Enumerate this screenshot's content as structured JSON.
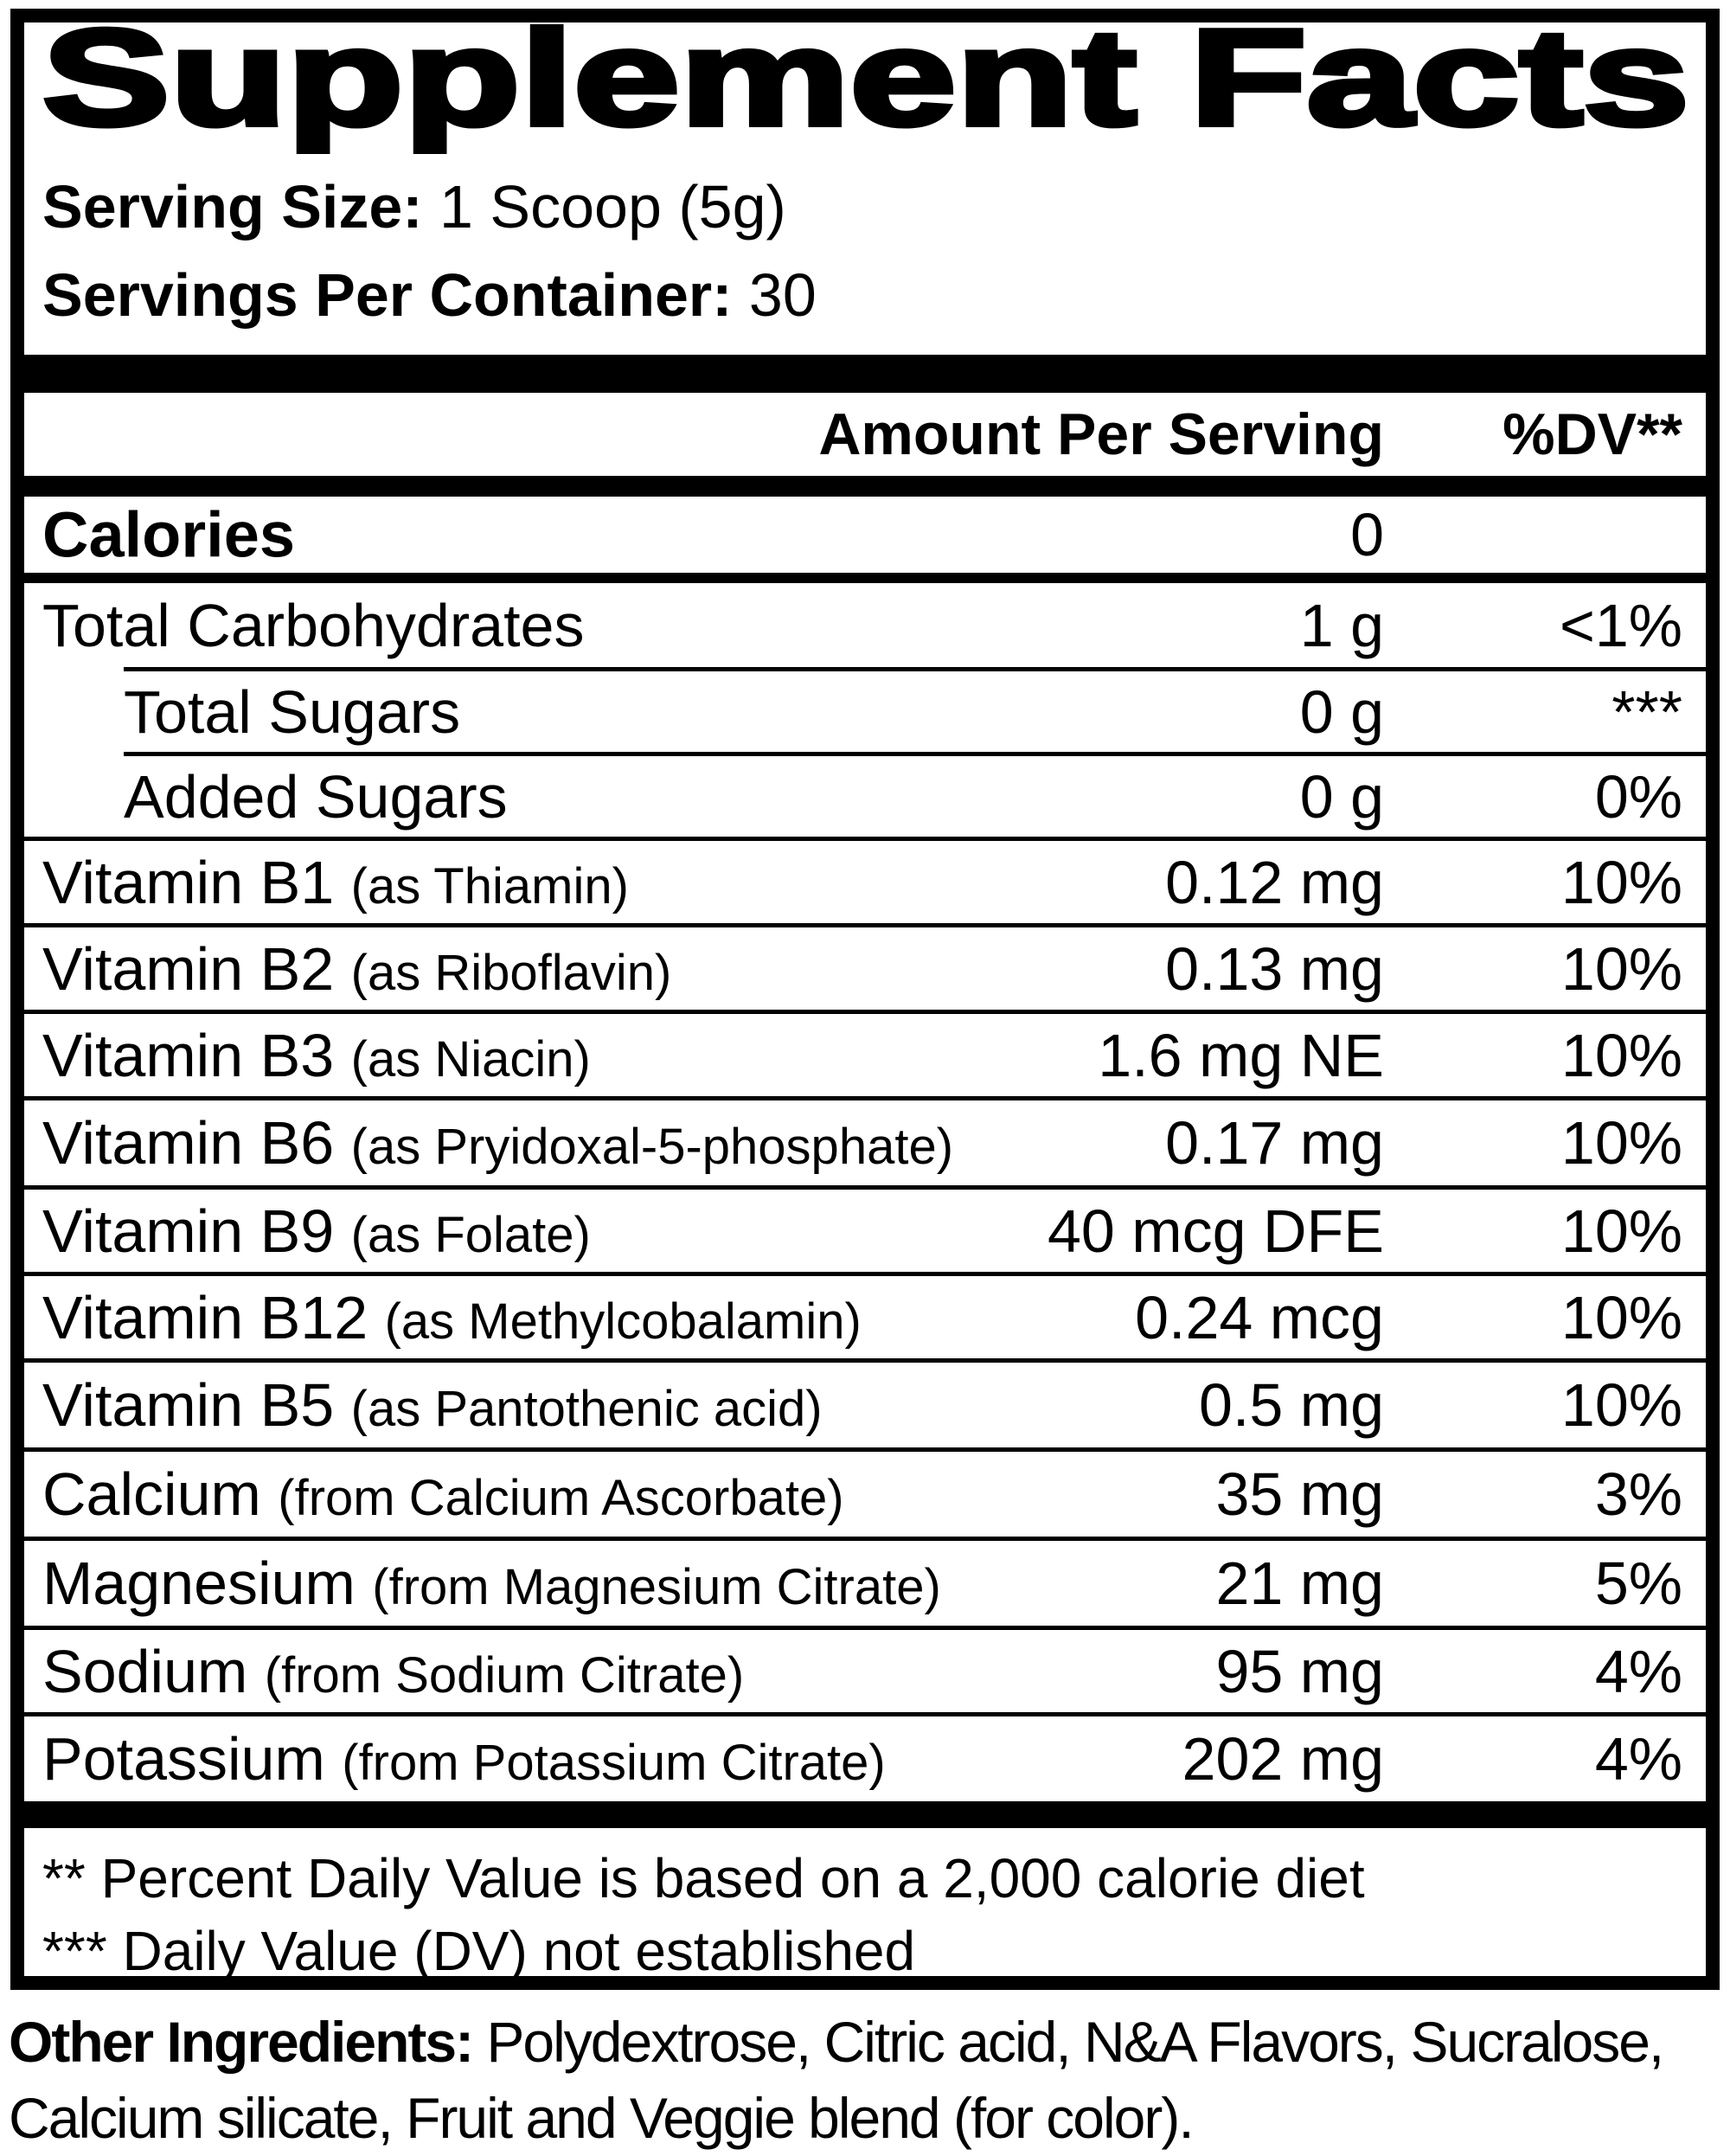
{
  "title": "Supplement Facts",
  "colors": {
    "ink": "#000000",
    "background": "#ffffff"
  },
  "serving": {
    "size_label": "Serving Size:",
    "size_value": "1 Scoop (5g)",
    "per_container_label": "Servings Per Container:",
    "per_container_value": "30"
  },
  "columns": {
    "amount_header": "Amount Per Serving",
    "dv_header": "%DV**"
  },
  "nutrients": [
    {
      "name": "Calories",
      "detail": "",
      "amount": "0",
      "dv": ""
    },
    {
      "name": "Total Carbohydrates",
      "detail": "",
      "amount": "1 g",
      "dv": "<1%"
    },
    {
      "name": "Total Sugars",
      "detail": "",
      "amount": "0 g",
      "dv": "***"
    },
    {
      "name": "Added Sugars",
      "detail": "",
      "amount": "0 g",
      "dv": "0%"
    },
    {
      "name": "Vitamin B1",
      "detail": "(as Thiamin)",
      "amount": "0.12 mg",
      "dv": "10%"
    },
    {
      "name": "Vitamin B2",
      "detail": "(as Riboflavin)",
      "amount": "0.13 mg",
      "dv": "10%"
    },
    {
      "name": "Vitamin B3",
      "detail": "(as Niacin)",
      "amount": "1.6 mg NE",
      "dv": "10%"
    },
    {
      "name": "Vitamin B6",
      "detail": "(as Pryidoxal-5-phosphate)",
      "amount": "0.17 mg",
      "dv": "10%"
    },
    {
      "name": "Vitamin B9",
      "detail": "(as Folate)",
      "amount": "40 mcg DFE",
      "dv": "10%"
    },
    {
      "name": "Vitamin B12",
      "detail": "(as Methylcobalamin)",
      "amount": "0.24 mcg",
      "dv": "10%"
    },
    {
      "name": "Vitamin B5",
      "detail": "(as Pantothenic acid)",
      "amount": "0.5 mg",
      "dv": "10%"
    },
    {
      "name": "Calcium",
      "detail": "(from Calcium Ascorbate)",
      "amount": "35 mg",
      "dv": "3%"
    },
    {
      "name": "Magnesium",
      "detail": "(from Magnesium Citrate)",
      "amount": "21 mg",
      "dv": "5%"
    },
    {
      "name": "Sodium",
      "detail": "(from Sodium Citrate)",
      "amount": "95 mg",
      "dv": "4%"
    },
    {
      "name": "Potassium",
      "detail": "(from Potassium Citrate)",
      "amount": "202 mg",
      "dv": "4%"
    }
  ],
  "footnotes": {
    "dv_note": "** Percent Daily Value is based on a 2,000 calorie diet",
    "not_established_note": "*** Daily Value (DV) not established"
  },
  "other_ingredients": {
    "label": "Other Ingredients:",
    "text": "Polydextrose, Citric acid, N&A Flavors, Sucralose, Calcium silicate, Fruit and Veggie blend (for color)."
  }
}
